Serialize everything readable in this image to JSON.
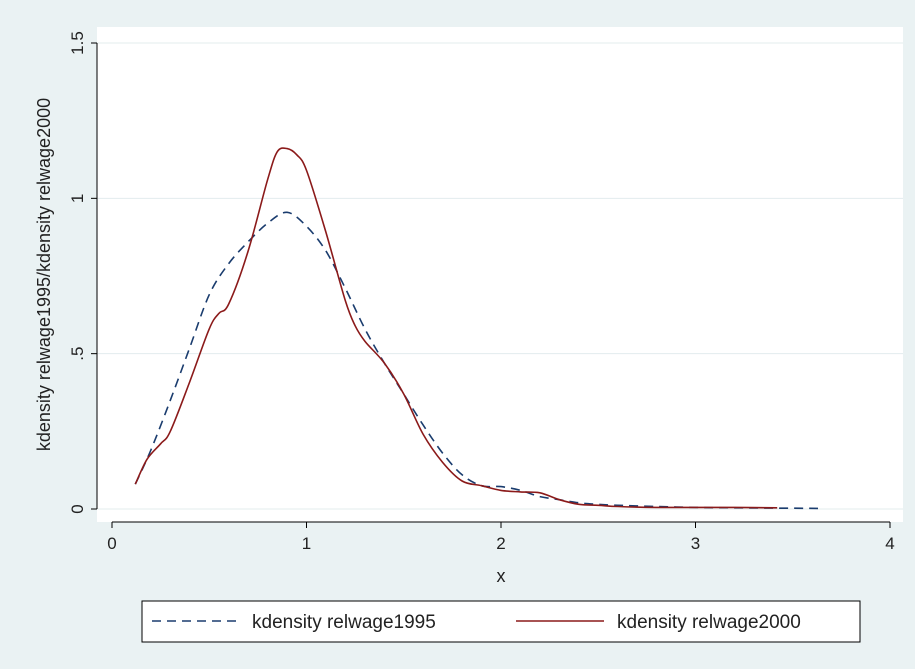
{
  "chart_data": {
    "type": "line",
    "title": "",
    "xlabel": "x",
    "ylabel": "kdensity relwage1995/kdensity relwage2000",
    "xlim": [
      0,
      4
    ],
    "ylim": [
      0,
      1.5
    ],
    "xticks": [
      0,
      1,
      2,
      3,
      4
    ],
    "xtick_labels": [
      "0",
      "1",
      "2",
      "3",
      "4"
    ],
    "yticks": [
      0,
      0.5,
      1,
      1.5
    ],
    "ytick_labels": [
      "0",
      ".5",
      "1",
      "1.5"
    ],
    "grid": "horizontal",
    "legend_position": "bottom",
    "series": [
      {
        "name": "kdensity relwage1995",
        "color": "#1a3c6e",
        "style": "dashed",
        "x": [
          0.12,
          0.2,
          0.3,
          0.4,
          0.5,
          0.6,
          0.7,
          0.8,
          0.9,
          1.0,
          1.1,
          1.2,
          1.3,
          1.4,
          1.5,
          1.6,
          1.7,
          1.8,
          1.9,
          2.0,
          2.1,
          2.2,
          2.3,
          2.4,
          2.5,
          2.6,
          2.8,
          3.0,
          3.2,
          3.4,
          3.63
        ],
        "y": [
          0.08,
          0.19,
          0.35,
          0.52,
          0.69,
          0.79,
          0.86,
          0.92,
          0.955,
          0.91,
          0.83,
          0.71,
          0.58,
          0.47,
          0.37,
          0.27,
          0.18,
          0.11,
          0.075,
          0.072,
          0.06,
          0.04,
          0.03,
          0.02,
          0.015,
          0.012,
          0.008,
          0.005,
          0.004,
          0.003,
          0.002
        ]
      },
      {
        "name": "kdensity relwage2000",
        "color": "#8b1a1a",
        "style": "solid",
        "x": [
          0.12,
          0.18,
          0.25,
          0.3,
          0.4,
          0.5,
          0.55,
          0.6,
          0.7,
          0.8,
          0.85,
          0.9,
          0.95,
          1.0,
          1.1,
          1.2,
          1.25,
          1.3,
          1.4,
          1.5,
          1.6,
          1.7,
          1.8,
          1.9,
          2.0,
          2.1,
          2.2,
          2.3,
          2.4,
          2.5,
          2.6,
          2.8,
          3.0,
          3.2,
          3.42
        ],
        "y": [
          0.08,
          0.16,
          0.21,
          0.25,
          0.41,
          0.58,
          0.63,
          0.66,
          0.83,
          1.06,
          1.15,
          1.16,
          1.14,
          1.09,
          0.89,
          0.67,
          0.59,
          0.54,
          0.47,
          0.37,
          0.24,
          0.15,
          0.09,
          0.075,
          0.06,
          0.055,
          0.052,
          0.03,
          0.015,
          0.012,
          0.008,
          0.005,
          0.005,
          0.005,
          0.004
        ]
      }
    ]
  }
}
